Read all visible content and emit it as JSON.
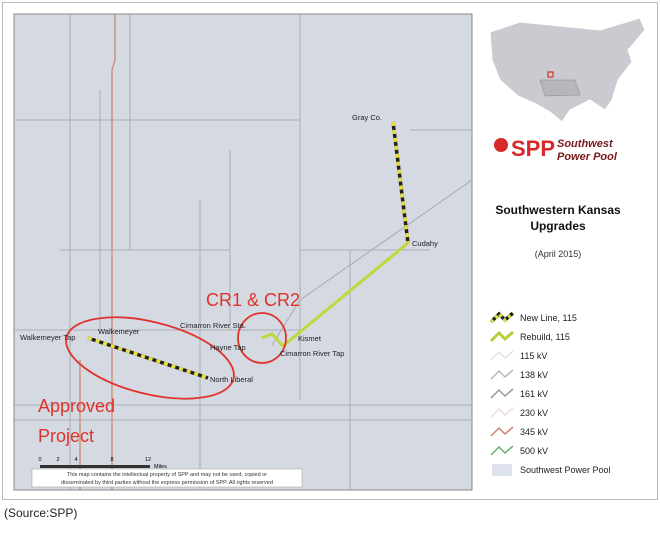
{
  "map": {
    "places": [
      "Gray Co.",
      "Cudahy",
      "Kismet",
      "Cimarron River Sta.",
      "Hayne Tap",
      "Cimarron River Tap",
      "Walkemeyer Tap",
      "Walkemeyer",
      "North Liberal"
    ],
    "callouts": [
      "CR1 & CR2",
      "Approved",
      "Project"
    ],
    "scale": {
      "ticks": [
        "0",
        "2",
        "4",
        "8",
        "12"
      ],
      "unit": "Miles"
    },
    "disclaimer": [
      "This map contains the intellectual property of SPP and may not be used, copied or",
      "disseminated by third parties without the express permission of SPP. All rights reserved"
    ]
  },
  "panel": {
    "logo": {
      "mark": "SPP",
      "line1": "Southwest",
      "line2": "Power Pool"
    },
    "title": [
      "Southwestern Kansas",
      "Upgrades"
    ],
    "date": "(April 2015)",
    "legend": [
      {
        "label": "New Line, 115",
        "color": "#d6df3a",
        "dashed": true
      },
      {
        "label": "Rebuild, 115",
        "color": "#b8cf3a"
      },
      {
        "label": "115 kV",
        "color": "#e2e2e2"
      },
      {
        "label": "138 kV",
        "color": "#b8b8b8"
      },
      {
        "label": "161 kV",
        "color": "#9a9a9a"
      },
      {
        "label": "230 kV",
        "color": "#e8dce8"
      },
      {
        "label": "345 kV",
        "color": "#d08070"
      },
      {
        "label": "500 kV",
        "color": "#6bb06b"
      },
      {
        "label": "Southwest Power Pool",
        "color": "#dde2ec",
        "area": true
      }
    ]
  },
  "caption": "(Source:SPP)"
}
